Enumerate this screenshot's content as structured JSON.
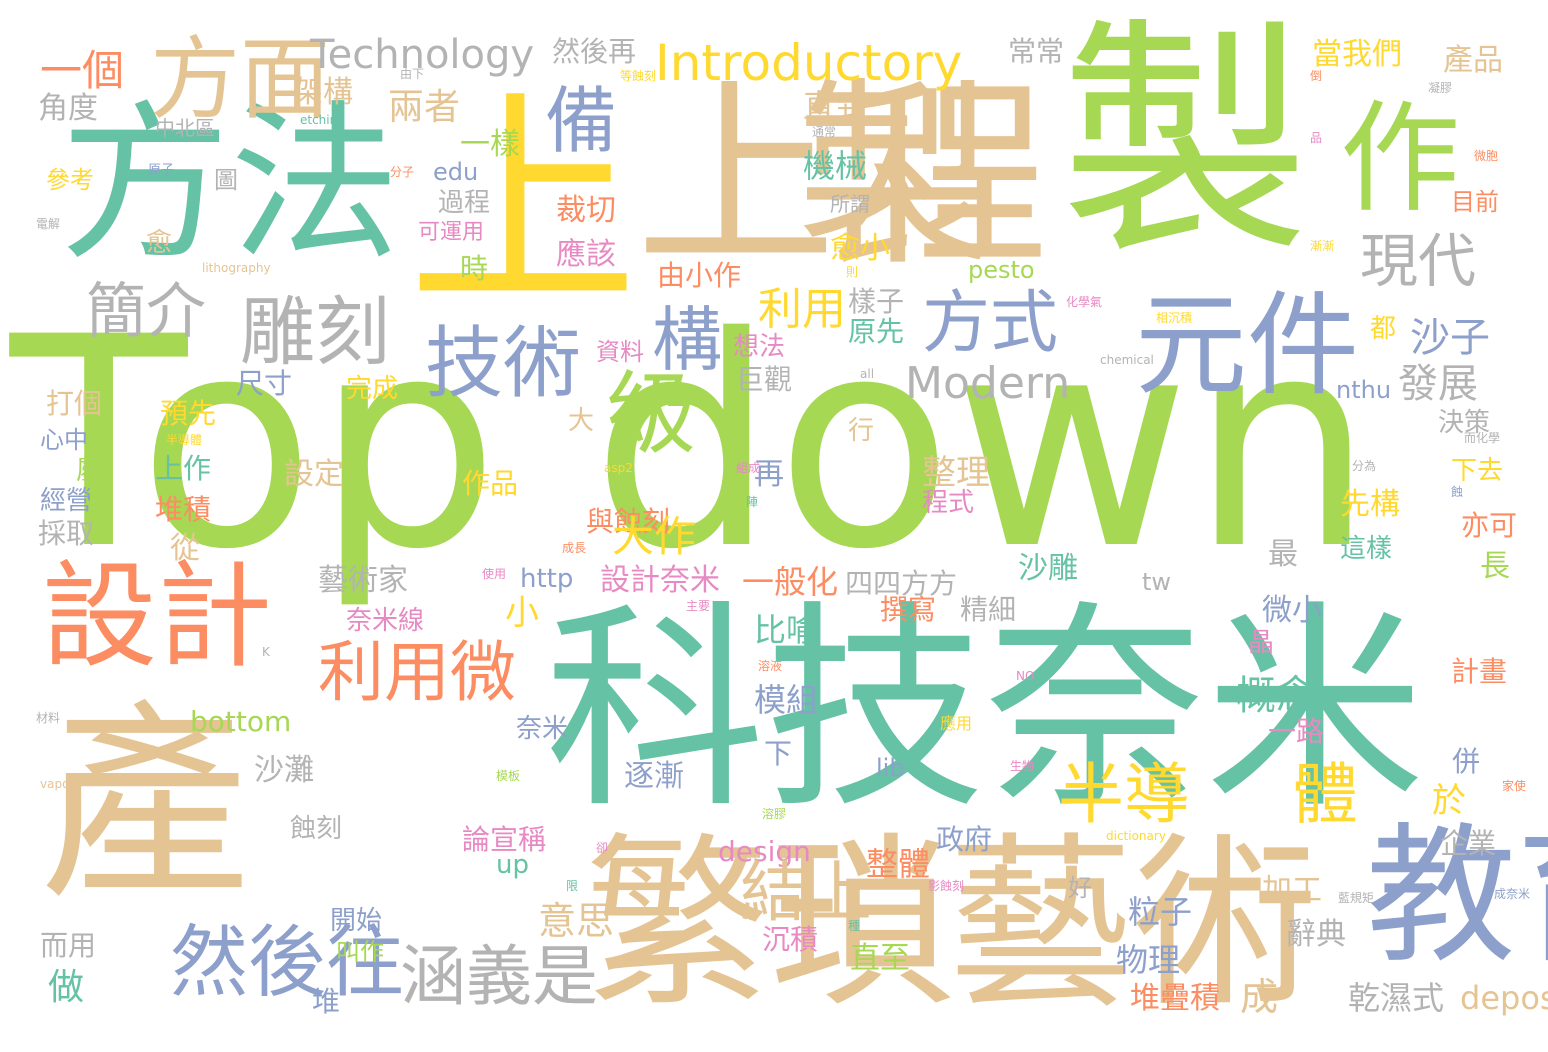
{
  "palette": {
    "green": "#a6d854",
    "teal": "#66c2a5",
    "orange": "#fc8d62",
    "blue": "#8da0cb",
    "pink": "#e78ac3",
    "yellow": "#ffd92f",
    "tan": "#e5c494",
    "gray": "#b3b3b3"
  },
  "words": [
    {
      "text": "Top down",
      "color": "#a6d854"
    },
    {
      "text": "製",
      "color": "#a6d854"
    },
    {
      "text": "程",
      "color": "#e5c494"
    },
    {
      "text": "上製",
      "color": "#e5c494"
    },
    {
      "text": "方法",
      "color": "#66c2a5"
    },
    {
      "text": "上",
      "color": "#ffd92f"
    },
    {
      "text": "作",
      "color": "#a6d854"
    },
    {
      "text": "方面",
      "color": "#e5c494"
    },
    {
      "text": "一個",
      "color": "#fc8d62"
    },
    {
      "text": "Technology",
      "color": "#b3b3b3"
    },
    {
      "text": "Introductory",
      "color": "#ffd92f"
    },
    {
      "text": "然後再",
      "color": "#b3b3b3"
    },
    {
      "text": "常常",
      "color": "#b3b3b3"
    },
    {
      "text": "當我們",
      "color": "#ffd92f"
    },
    {
      "text": "產品",
      "color": "#e5c494"
    },
    {
      "text": "備",
      "color": "#8da0cb"
    },
    {
      "text": "架構",
      "color": "#e5c494"
    },
    {
      "text": "兩者",
      "color": "#e5c494"
    },
    {
      "text": "直到",
      "color": "#e5c494"
    },
    {
      "text": "角度",
      "color": "#b3b3b3"
    },
    {
      "text": "中北區",
      "color": "#b3b3b3"
    },
    {
      "text": "一樣",
      "color": "#a6d854"
    },
    {
      "text": "機械",
      "color": "#66c2a5"
    },
    {
      "text": "參考",
      "color": "#ffd92f"
    },
    {
      "text": "圖",
      "color": "#b3b3b3"
    },
    {
      "text": "edu",
      "color": "#8da0cb"
    },
    {
      "text": "過程",
      "color": "#b3b3b3"
    },
    {
      "text": "裁切",
      "color": "#fc8d62"
    },
    {
      "text": "可運用",
      "color": "#e78ac3"
    },
    {
      "text": "目前",
      "color": "#fc8d62"
    },
    {
      "text": "愈",
      "color": "#e5c494"
    },
    {
      "text": "應該",
      "color": "#e78ac3"
    },
    {
      "text": "現代",
      "color": "#b3b3b3"
    },
    {
      "text": "簡介",
      "color": "#b3b3b3"
    },
    {
      "text": "雕刻",
      "color": "#b3b3b3"
    },
    {
      "text": "技術",
      "color": "#8da0cb"
    },
    {
      "text": "構",
      "color": "#8da0cb"
    },
    {
      "text": "利用",
      "color": "#ffd92f"
    },
    {
      "text": "方式",
      "color": "#8da0cb"
    },
    {
      "text": "元件",
      "color": "#8da0cb"
    },
    {
      "text": "時",
      "color": "#a6d854"
    },
    {
      "text": "由小作",
      "color": "#fc8d62"
    },
    {
      "text": "pesto",
      "color": "#a6d854"
    },
    {
      "text": "愈小",
      "color": "#ffd92f"
    },
    {
      "text": "樣子",
      "color": "#b3b3b3"
    },
    {
      "text": "級",
      "color": "#a6d854"
    },
    {
      "text": "Modern",
      "color": "#b3b3b3"
    },
    {
      "text": "沙子",
      "color": "#8da0cb"
    },
    {
      "text": "發展",
      "color": "#b3b3b3"
    },
    {
      "text": "原先",
      "color": "#66c2a5"
    },
    {
      "text": "都",
      "color": "#ffd92f"
    },
    {
      "text": "資料",
      "color": "#e78ac3"
    },
    {
      "text": "想法",
      "color": "#e78ac3"
    },
    {
      "text": "巨觀",
      "color": "#b3b3b3"
    },
    {
      "text": "尺寸",
      "color": "#8da0cb"
    },
    {
      "text": "完成",
      "color": "#ffd92f"
    },
    {
      "text": "打個",
      "color": "#e5c494"
    },
    {
      "text": "預先",
      "color": "#ffd92f"
    },
    {
      "text": "nthu",
      "color": "#8da0cb"
    },
    {
      "text": "決策",
      "color": "#b3b3b3"
    },
    {
      "text": "心中",
      "color": "#8da0cb"
    },
    {
      "text": "大",
      "color": "#e5c494"
    },
    {
      "text": "行",
      "color": "#e5c494"
    },
    {
      "text": "上作",
      "color": "#66c2a5"
    },
    {
      "text": "屬",
      "color": "#a6d854"
    },
    {
      "text": "設定",
      "color": "#e5c494"
    },
    {
      "text": "作品",
      "color": "#ffd92f"
    },
    {
      "text": "再",
      "color": "#8da0cb"
    },
    {
      "text": "整理",
      "color": "#e5c494"
    },
    {
      "text": "程式",
      "color": "#e78ac3"
    },
    {
      "text": "經營",
      "color": "#8da0cb"
    },
    {
      "text": "堆積",
      "color": "#fc8d62"
    },
    {
      "text": "與蝕刻",
      "color": "#fc8d62"
    },
    {
      "text": "下去",
      "color": "#ffd92f"
    },
    {
      "text": "先構",
      "color": "#ffd92f"
    },
    {
      "text": "亦可",
      "color": "#fc8d62"
    },
    {
      "text": "採取",
      "color": "#b3b3b3"
    },
    {
      "text": "從",
      "color": "#e5c494"
    },
    {
      "text": "大作",
      "color": "#ffd92f"
    },
    {
      "text": "最",
      "color": "#b3b3b3"
    },
    {
      "text": "這樣",
      "color": "#66c2a5"
    },
    {
      "text": "長",
      "color": "#a6d854"
    },
    {
      "text": "設計",
      "color": "#fc8d62"
    },
    {
      "text": "藝術家",
      "color": "#b3b3b3"
    },
    {
      "text": "http",
      "color": "#8da0cb"
    },
    {
      "text": "設計奈米",
      "color": "#e78ac3"
    },
    {
      "text": "一般化",
      "color": "#fc8d62"
    },
    {
      "text": "四四方方",
      "color": "#b3b3b3"
    },
    {
      "text": "沙雕",
      "color": "#66c2a5"
    },
    {
      "text": "tw",
      "color": "#b3b3b3"
    },
    {
      "text": "小",
      "color": "#ffd92f"
    },
    {
      "text": "奈米線",
      "color": "#e78ac3"
    },
    {
      "text": "撰寫",
      "color": "#fc8d62"
    },
    {
      "text": "精細",
      "color": "#b3b3b3"
    },
    {
      "text": "微小",
      "color": "#8da0cb"
    },
    {
      "text": "利用微",
      "color": "#fc8d62"
    },
    {
      "text": "科技奈米",
      "color": "#66c2a5"
    },
    {
      "text": "比喻",
      "color": "#66c2a5"
    },
    {
      "text": "晶",
      "color": "#e78ac3"
    },
    {
      "text": "計畫",
      "color": "#fc8d62"
    },
    {
      "text": "模組",
      "color": "#8da0cb"
    },
    {
      "text": "概念",
      "color": "#66c2a5"
    },
    {
      "text": "bottom",
      "color": "#a6d854"
    },
    {
      "text": "奈米",
      "color": "#e5c494"
    },
    {
      "text": "產",
      "color": "#8da0cb"
    },
    {
      "text": "一路",
      "color": "#e78ac3"
    },
    {
      "text": "沙灘",
      "color": "#b3b3b3"
    },
    {
      "text": "下",
      "color": "#8da0cb"
    },
    {
      "text": "lib",
      "color": "#8da0cb"
    },
    {
      "text": "併",
      "color": "#8da0cb"
    },
    {
      "text": "逐漸",
      "color": "#8da0cb"
    },
    {
      "text": "半導",
      "color": "#ffd92f"
    },
    {
      "text": "體",
      "color": "#ffd92f"
    },
    {
      "text": "於",
      "color": "#ffd92f"
    },
    {
      "text": "蝕刻",
      "color": "#b3b3b3"
    },
    {
      "text": "政府",
      "color": "#8da0cb"
    },
    {
      "text": "論宣稱",
      "color": "#e78ac3"
    },
    {
      "text": "design",
      "color": "#e78ac3"
    },
    {
      "text": "up",
      "color": "#66c2a5"
    },
    {
      "text": "企業",
      "color": "#b3b3b3"
    },
    {
      "text": "整體",
      "color": "#fc8d62"
    },
    {
      "text": "結上",
      "color": "#e5c494"
    },
    {
      "text": "由上",
      "color": "#e5c494"
    },
    {
      "text": "而下",
      "color": "#e5c494"
    },
    {
      "text": "來",
      "color": "#8da0cb"
    },
    {
      "text": "k12",
      "color": "#b3b3b3"
    },
    {
      "text": "繁瑣",
      "color": "#e5c494"
    },
    {
      "text": "藝術",
      "color": "#8da0cb"
    },
    {
      "text": "教育",
      "color": "#8da0cb"
    },
    {
      "text": "好",
      "color": "#e5c494"
    },
    {
      "text": "加工",
      "color": "#b3b3b3"
    },
    {
      "text": "粒子",
      "color": "#8da0cb"
    },
    {
      "text": "開始",
      "color": "#b3b3b3"
    },
    {
      "text": "意思",
      "color": "#b3b3b3"
    },
    {
      "text": "辭典",
      "color": "#a6d854"
    },
    {
      "text": "然後往",
      "color": "#a6d854"
    },
    {
      "text": "涵義是",
      "color": "#e78ac3"
    },
    {
      "text": "而用",
      "color": "#8da0cb"
    },
    {
      "text": "叫作",
      "color": "#66c2a5"
    },
    {
      "text": "直至",
      "color": "#8da0cb"
    },
    {
      "text": "沉積",
      "color": "#fc8d62"
    },
    {
      "text": "物理",
      "color": "#e5c494"
    },
    {
      "text": "做",
      "color": "#b3b3b3"
    },
    {
      "text": "堆",
      "color": "#e5c494"
    },
    {
      "text": "堆疊積",
      "color": "#b3b3b3"
    },
    {
      "text": "成",
      "color": "#ffd92f"
    },
    {
      "text": "乾濕式",
      "color": "#fc8d62"
    },
    {
      "text": "deposition",
      "color": "#b3b3b3"
    },
    {
      "text": "由下",
      "color": "#66c2a5"
    },
    {
      "text": "等蝕刻",
      "color": "#b3b3b3"
    },
    {
      "text": "倒",
      "color": "#e78ac3"
    },
    {
      "text": "凝膠",
      "color": "#fc8d62"
    },
    {
      "text": "etching",
      "color": "#8da0cb"
    },
    {
      "text": "通常",
      "color": "#fc8d62"
    },
    {
      "text": "品",
      "color": "#b3b3b3"
    },
    {
      "text": "微胞",
      "color": "#b3b3b3"
    },
    {
      "text": "原子",
      "color": "#e5c494"
    },
    {
      "text": "分子",
      "color": "#ffd92f"
    },
    {
      "text": "所謂",
      "color": "#ffd92f"
    },
    {
      "text": "電解",
      "color": "#e78ac3"
    },
    {
      "text": "lithography",
      "color": "#ffd92f"
    },
    {
      "text": "則",
      "color": "#b3b3b3"
    },
    {
      "text": "漸漸",
      "color": "#b3b3b3"
    },
    {
      "text": "化學氣",
      "color": "#b3b3b3"
    },
    {
      "text": "相沉積",
      "color": "#ffd92f"
    },
    {
      "text": "chemical",
      "color": "#ffd92f"
    },
    {
      "text": "all",
      "color": "#e78ac3"
    },
    {
      "text": "而化學",
      "color": "#66c2a5"
    },
    {
      "text": "半導體",
      "color": "#b3b3b3"
    },
    {
      "text": "asp2",
      "color": "#8da0cb"
    },
    {
      "text": "組成",
      "color": "#fc8d62"
    },
    {
      "text": "陣",
      "color": "#e78ac3"
    },
    {
      "text": "分為",
      "color": "#e78ac3"
    },
    {
      "text": "蝕",
      "color": "#b3b3b3"
    },
    {
      "text": "成長",
      "color": "#fc8d62"
    },
    {
      "text": "使用",
      "color": "#e78ac3"
    },
    {
      "text": "主要",
      "color": "#b3b3b3"
    },
    {
      "text": "K",
      "color": "#ffd92f"
    },
    {
      "text": "溶液",
      "color": "#e78ac3"
    },
    {
      "text": "NO",
      "color": "#e5c494"
    },
    {
      "text": "材料",
      "color": "#a6d854"
    },
    {
      "text": "應用",
      "color": "#fc8d62"
    },
    {
      "text": "生物",
      "color": "#a6d854"
    },
    {
      "text": "vapor",
      "color": "#ffd92f"
    },
    {
      "text": "模板",
      "color": "#e78ac3"
    },
    {
      "text": "家使",
      "color": "#66c2a5"
    },
    {
      "text": "溶膠",
      "color": "#e78ac3"
    },
    {
      "text": "dictionary",
      "color": "#66c2a5"
    },
    {
      "text": "卻",
      "color": "#b3b3b3"
    },
    {
      "text": "限",
      "color": "#8da0cb"
    },
    {
      "text": "影蝕刻",
      "color": "#e78ac3"
    },
    {
      "text": "種",
      "color": "#b3b3b3"
    },
    {
      "text": "藍規矩",
      "color": "#b3b3b3"
    },
    {
      "text": "成奈米",
      "color": "#e78ac3"
    }
  ]
}
